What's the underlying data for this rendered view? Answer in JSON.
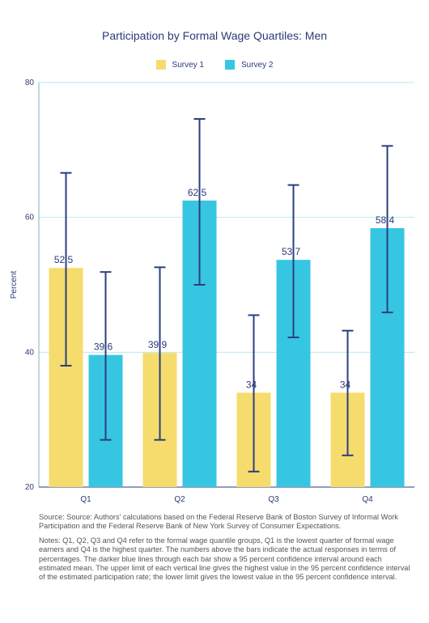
{
  "chart_data": {
    "type": "bar",
    "title": "Participation by Formal Wage Quartiles: Men",
    "ylabel": "Percent",
    "xlabel": "",
    "ylim": [
      20,
      80
    ],
    "yticks": [
      20,
      40,
      60,
      80
    ],
    "grid": true,
    "legend_position": "top-center",
    "categories": [
      "Q1",
      "Q2",
      "Q3",
      "Q4"
    ],
    "series": [
      {
        "name": "Survey 1",
        "color": "#f6dc6d",
        "values": [
          52.5,
          39.9,
          34,
          34
        ],
        "labels": [
          "52.5",
          "39.9",
          "34",
          "34"
        ],
        "ci_low": [
          38.0,
          27.0,
          22.3,
          24.7
        ],
        "ci_high": [
          66.6,
          52.6,
          45.5,
          43.2
        ]
      },
      {
        "name": "Survey 2",
        "color": "#37c6e2",
        "values": [
          39.6,
          62.5,
          53.7,
          58.4
        ],
        "labels": [
          "39.6",
          "62.5",
          "53.7",
          "58.4"
        ],
        "ci_low": [
          27.0,
          50.0,
          42.2,
          45.9
        ],
        "ci_high": [
          51.9,
          74.6,
          64.8,
          70.6
        ]
      }
    ],
    "error_bar_color": "#2b3f80"
  },
  "notes": {
    "source": "Source: Source: Authors' calculations based on the Federal Reserve Bank of Boston Survey of Informal Work Participation and the Federal Reserve Bank of New York Survey of Consumer Expectations.",
    "notes": "Notes: Q1, Q2, Q3 and Q4 refer to the formal wage quantile groups, Q1 is the lowest quarter of formal wage earners and Q4 is the highest quarter. The numbers above the bars indicate the actual responses in terms of percentages. The darker blue lines through each bar show a 95 percent confidence interval around each estimated mean. The upper limit of each vertical line gives the highest value in the 95 percent confidence interval of the estimated participation rate; the lower limit gives the lowest value in the 95 percent confidence interval."
  }
}
